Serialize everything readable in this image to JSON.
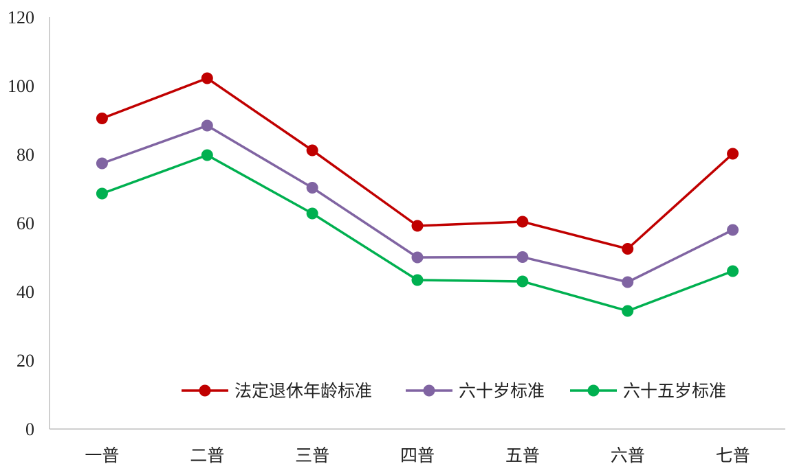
{
  "chart_data": {
    "type": "line",
    "title": "",
    "xlabel": "",
    "ylabel": "",
    "categories": [
      "一普",
      "二普",
      "三普",
      "四普",
      "五普",
      "六普",
      "七普"
    ],
    "ylim": [
      0,
      120
    ],
    "yticks": [
      0,
      20,
      40,
      60,
      80,
      100,
      120
    ],
    "grid": false,
    "legend_position": "bottom-right",
    "series": [
      {
        "name": "法定退休年龄标准",
        "color": "#C00000",
        "values": [
          90.5,
          102.2,
          81.2,
          59.2,
          60.4,
          52.5,
          80.2
        ]
      },
      {
        "name": "六十岁标准",
        "color": "#8064A2",
        "values": [
          77.4,
          88.4,
          70.3,
          50.0,
          50.1,
          42.8,
          58.0
        ]
      },
      {
        "name": "六十五岁标准",
        "color": "#00B050",
        "values": [
          68.6,
          79.8,
          62.8,
          43.4,
          43.0,
          34.4,
          46.0
        ]
      }
    ]
  }
}
